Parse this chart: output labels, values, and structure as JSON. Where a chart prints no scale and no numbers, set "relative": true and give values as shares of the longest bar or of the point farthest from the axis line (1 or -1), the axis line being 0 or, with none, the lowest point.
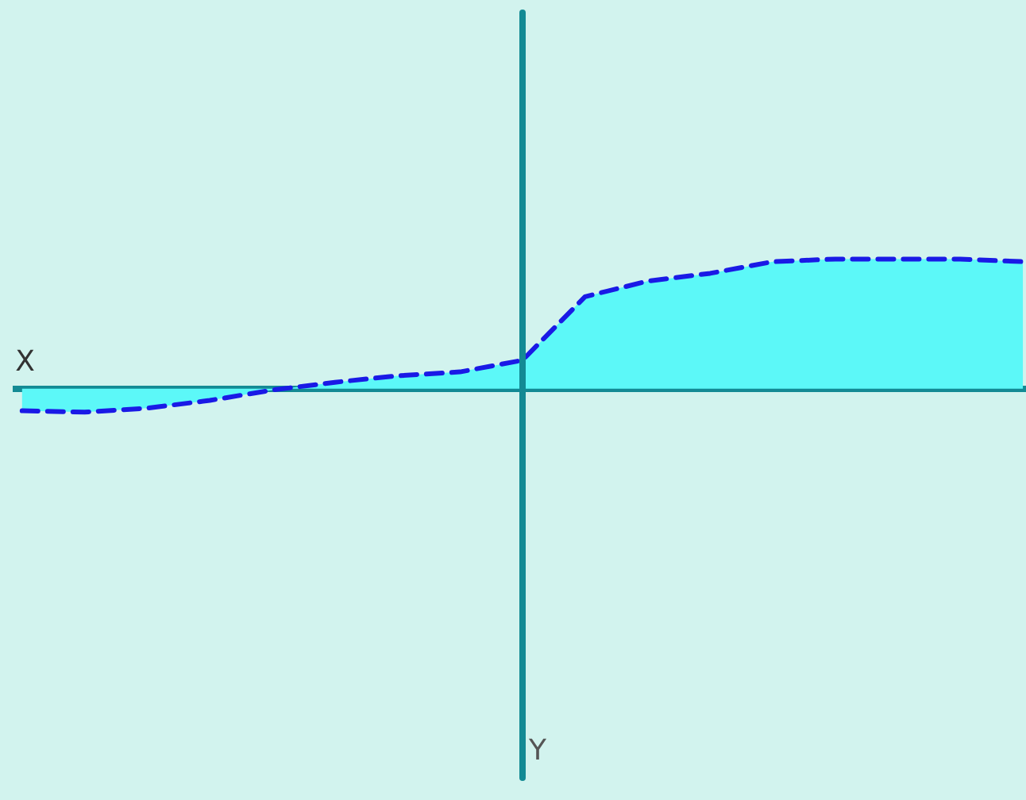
{
  "chart_data": {
    "type": "area",
    "relative": true,
    "xlabel": "X",
    "annotations": [
      "Y"
    ],
    "ref_lines": [
      {
        "axis": "y",
        "value": 0,
        "color": "#138a94"
      }
    ],
    "line_style": "dashed",
    "categories": [
      null,
      null,
      null,
      null,
      null,
      null,
      null,
      null,
      null,
      null,
      null,
      null,
      null,
      null,
      null,
      null,
      null
    ],
    "series": [
      {
        "color": "#1a1ae6",
        "values": [
          -0.17,
          -0.18,
          -0.15,
          -0.09,
          -0.01,
          0.05,
          0.1,
          0.13,
          0.22,
          0.71,
          0.83,
          0.89,
          0.98,
          1.0,
          1.0,
          1.0,
          0.98
        ]
      }
    ]
  }
}
